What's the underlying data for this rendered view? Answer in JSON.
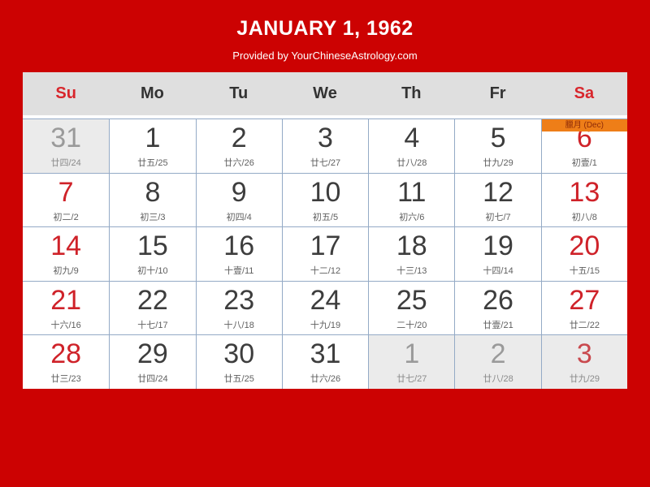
{
  "header": {
    "title": "JANUARY 1, 1962",
    "subtitle": "Provided by YourChineseAstrology.com"
  },
  "colors": {
    "background": "#cc0202",
    "grid_border": "#94aac6",
    "weekend_red": "#cf2229",
    "banner_orange": "#ee7e18",
    "header_gray": "#dfdfdf",
    "other_month_gray": "#ebebeb"
  },
  "weekdays": [
    {
      "label": "Su",
      "weekend": true
    },
    {
      "label": "Mo",
      "weekend": false
    },
    {
      "label": "Tu",
      "weekend": false
    },
    {
      "label": "We",
      "weekend": false
    },
    {
      "label": "Th",
      "weekend": false
    },
    {
      "label": "Fr",
      "weekend": false
    },
    {
      "label": "Sa",
      "weekend": true
    }
  ],
  "cells": [
    {
      "day": "31",
      "lunar": "廿四/24",
      "other_month": true,
      "red": false,
      "banner": null
    },
    {
      "day": "1",
      "lunar": "廿五/25",
      "other_month": false,
      "red": false,
      "banner": null
    },
    {
      "day": "2",
      "lunar": "廿六/26",
      "other_month": false,
      "red": false,
      "banner": null
    },
    {
      "day": "3",
      "lunar": "廿七/27",
      "other_month": false,
      "red": false,
      "banner": null
    },
    {
      "day": "4",
      "lunar": "廿八/28",
      "other_month": false,
      "red": false,
      "banner": null
    },
    {
      "day": "5",
      "lunar": "廿九/29",
      "other_month": false,
      "red": false,
      "banner": null
    },
    {
      "day": "6",
      "lunar": "初壹/1",
      "other_month": false,
      "red": true,
      "banner": "臘月 (Dec)"
    },
    {
      "day": "7",
      "lunar": "初二/2",
      "other_month": false,
      "red": true,
      "banner": null
    },
    {
      "day": "8",
      "lunar": "初三/3",
      "other_month": false,
      "red": false,
      "banner": null
    },
    {
      "day": "9",
      "lunar": "初四/4",
      "other_month": false,
      "red": false,
      "banner": null
    },
    {
      "day": "10",
      "lunar": "初五/5",
      "other_month": false,
      "red": false,
      "banner": null
    },
    {
      "day": "11",
      "lunar": "初六/6",
      "other_month": false,
      "red": false,
      "banner": null
    },
    {
      "day": "12",
      "lunar": "初七/7",
      "other_month": false,
      "red": false,
      "banner": null
    },
    {
      "day": "13",
      "lunar": "初八/8",
      "other_month": false,
      "red": true,
      "banner": null
    },
    {
      "day": "14",
      "lunar": "初九/9",
      "other_month": false,
      "red": true,
      "banner": null
    },
    {
      "day": "15",
      "lunar": "初十/10",
      "other_month": false,
      "red": false,
      "banner": null
    },
    {
      "day": "16",
      "lunar": "十壹/11",
      "other_month": false,
      "red": false,
      "banner": null
    },
    {
      "day": "17",
      "lunar": "十二/12",
      "other_month": false,
      "red": false,
      "banner": null
    },
    {
      "day": "18",
      "lunar": "十三/13",
      "other_month": false,
      "red": false,
      "banner": null
    },
    {
      "day": "19",
      "lunar": "十四/14",
      "other_month": false,
      "red": false,
      "banner": null
    },
    {
      "day": "20",
      "lunar": "十五/15",
      "other_month": false,
      "red": true,
      "banner": null
    },
    {
      "day": "21",
      "lunar": "十六/16",
      "other_month": false,
      "red": true,
      "banner": null
    },
    {
      "day": "22",
      "lunar": "十七/17",
      "other_month": false,
      "red": false,
      "banner": null
    },
    {
      "day": "23",
      "lunar": "十八/18",
      "other_month": false,
      "red": false,
      "banner": null
    },
    {
      "day": "24",
      "lunar": "十九/19",
      "other_month": false,
      "red": false,
      "banner": null
    },
    {
      "day": "25",
      "lunar": "二十/20",
      "other_month": false,
      "red": false,
      "banner": null
    },
    {
      "day": "26",
      "lunar": "廿壹/21",
      "other_month": false,
      "red": false,
      "banner": null
    },
    {
      "day": "27",
      "lunar": "廿二/22",
      "other_month": false,
      "red": true,
      "banner": null
    },
    {
      "day": "28",
      "lunar": "廿三/23",
      "other_month": false,
      "red": true,
      "banner": null
    },
    {
      "day": "29",
      "lunar": "廿四/24",
      "other_month": false,
      "red": false,
      "banner": null
    },
    {
      "day": "30",
      "lunar": "廿五/25",
      "other_month": false,
      "red": false,
      "banner": null
    },
    {
      "day": "31",
      "lunar": "廿六/26",
      "other_month": false,
      "red": false,
      "banner": null
    },
    {
      "day": "1",
      "lunar": "廿七/27",
      "other_month": true,
      "red": false,
      "banner": null
    },
    {
      "day": "2",
      "lunar": "廿八/28",
      "other_month": true,
      "red": false,
      "banner": null
    },
    {
      "day": "3",
      "lunar": "廿九/29",
      "other_month": true,
      "red": true,
      "banner": null
    }
  ]
}
